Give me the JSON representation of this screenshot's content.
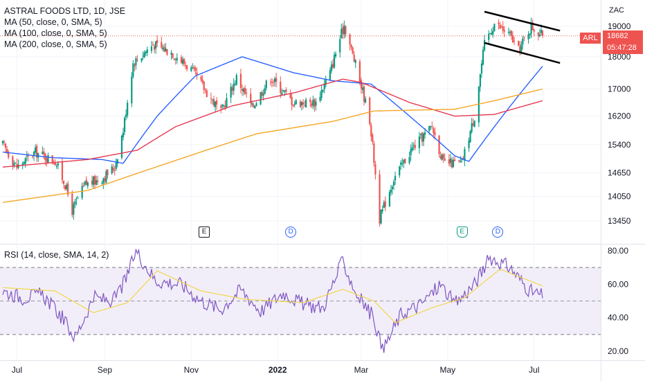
{
  "header": {
    "title": "ASTRAL FOODS LTD, 1D, JSE",
    "indicators": [
      "MA (50, close, 0, SMA, 5)",
      "MA (100, close, 0, SMA, 5)",
      "MA (200, close, 0, SMA, 5)"
    ],
    "rsi_label": "RSI (14, close, SMA, 14, 2)"
  },
  "currency": "ZAC",
  "price_tag": {
    "ticker": "ARL",
    "price": "18682",
    "countdown": "05:47:28"
  },
  "events": [
    {
      "kind": "E",
      "date_index": 107
    },
    {
      "kind": "D",
      "date_index": 153
    },
    {
      "kind": "E",
      "date_index": 244
    },
    {
      "kind": "D",
      "date_index": 263
    }
  ],
  "colors": {
    "up": "#089981",
    "down": "#ef5350",
    "ma50": "#2962ff",
    "ma100": "#e53950",
    "ma200": "#f5a623",
    "rsi": "#7e57c2",
    "rsi_ma": "#f2d64c",
    "rsi_band": "#ede7f6",
    "grid": "#f0f3fa",
    "text": "#131722"
  },
  "chart_data": [
    {
      "type": "candlestick",
      "title": "ASTRAL FOODS LTD, 1D, JSE",
      "period": "1D",
      "x_tick_labels": [
        "Jul",
        "Sep",
        "Nov",
        "2022",
        "Mar",
        "May",
        "Jul"
      ],
      "x_tick_dates": [
        "2021-07-01",
        "2021-09-01",
        "2021-11-01",
        "2022-01-01",
        "2022-03-01",
        "2022-05-01",
        "2022-07-01"
      ],
      "y_tick_labels": [
        13450,
        14050,
        14650,
        15400,
        16200,
        17000,
        18000,
        19000
      ],
      "ylim": [
        13000,
        19700
      ],
      "y_scale": "log",
      "last_price": 18682,
      "price_path": [
        {
          "date": "2021-06-21",
          "close": 15400
        },
        {
          "date": "2021-07-01",
          "close": 14800
        },
        {
          "date": "2021-07-14",
          "close": 15200
        },
        {
          "date": "2021-07-28",
          "close": 14950
        },
        {
          "date": "2021-08-04",
          "close": 14350
        },
        {
          "date": "2021-08-09",
          "close": 13700
        },
        {
          "date": "2021-08-18",
          "close": 14350
        },
        {
          "date": "2021-08-30",
          "close": 14500
        },
        {
          "date": "2021-09-08",
          "close": 14800
        },
        {
          "date": "2021-09-14",
          "close": 15800
        },
        {
          "date": "2021-09-21",
          "close": 17800
        },
        {
          "date": "2021-10-05",
          "close": 18400
        },
        {
          "date": "2021-10-18",
          "close": 18150
        },
        {
          "date": "2021-11-01",
          "close": 17600
        },
        {
          "date": "2021-11-12",
          "close": 16900
        },
        {
          "date": "2021-11-22",
          "close": 16300
        },
        {
          "date": "2021-12-03",
          "close": 17350
        },
        {
          "date": "2021-12-14",
          "close": 16450
        },
        {
          "date": "2021-12-27",
          "close": 17350
        },
        {
          "date": "2022-01-12",
          "close": 16600
        },
        {
          "date": "2022-01-28",
          "close": 16600
        },
        {
          "date": "2022-02-07",
          "close": 17500
        },
        {
          "date": "2022-02-14",
          "close": 18600
        },
        {
          "date": "2022-02-17",
          "close": 19050
        },
        {
          "date": "2022-02-24",
          "close": 17900
        },
        {
          "date": "2022-03-01",
          "close": 17100
        },
        {
          "date": "2022-03-07",
          "close": 16100
        },
        {
          "date": "2022-03-14",
          "close": 13500
        },
        {
          "date": "2022-03-24",
          "close": 14500
        },
        {
          "date": "2022-04-06",
          "close": 15300
        },
        {
          "date": "2022-04-20",
          "close": 15900
        },
        {
          "date": "2022-04-28",
          "close": 14900
        },
        {
          "date": "2022-05-11",
          "close": 14900
        },
        {
          "date": "2022-05-20",
          "close": 16200
        },
        {
          "date": "2022-05-27",
          "close": 18400
        },
        {
          "date": "2022-06-03",
          "close": 19100
        },
        {
          "date": "2022-06-14",
          "close": 18700
        },
        {
          "date": "2022-06-20",
          "close": 18200
        },
        {
          "date": "2022-06-29",
          "close": 19000
        },
        {
          "date": "2022-07-07",
          "close": 18682
        }
      ],
      "series": [
        {
          "name": "MA (50, close, 0, SMA, 5)",
          "points": [
            {
              "date": "2021-06-21",
              "value": 15200
            },
            {
              "date": "2021-07-26",
              "value": 15050
            },
            {
              "date": "2021-08-30",
              "value": 15000
            },
            {
              "date": "2021-09-14",
              "value": 14900
            },
            {
              "date": "2021-10-08",
              "value": 16200
            },
            {
              "date": "2021-11-04",
              "value": 17400
            },
            {
              "date": "2021-12-07",
              "value": 18000
            },
            {
              "date": "2022-01-12",
              "value": 17500
            },
            {
              "date": "2022-02-09",
              "value": 17250
            },
            {
              "date": "2022-03-08",
              "value": 17150
            },
            {
              "date": "2022-04-07",
              "value": 16100
            },
            {
              "date": "2022-05-06",
              "value": 15100
            },
            {
              "date": "2022-05-16",
              "value": 14950
            },
            {
              "date": "2022-06-03",
              "value": 15900
            },
            {
              "date": "2022-07-07",
              "value": 17700
            }
          ]
        },
        {
          "name": "MA (100, close, 0, SMA, 5)",
          "points": [
            {
              "date": "2021-06-21",
              "value": 14800
            },
            {
              "date": "2021-08-20",
              "value": 15000
            },
            {
              "date": "2021-09-24",
              "value": 15250
            },
            {
              "date": "2021-10-21",
              "value": 15900
            },
            {
              "date": "2021-11-30",
              "value": 16500
            },
            {
              "date": "2022-01-14",
              "value": 16900
            },
            {
              "date": "2022-02-16",
              "value": 17300
            },
            {
              "date": "2022-03-01",
              "value": 17200
            },
            {
              "date": "2022-04-04",
              "value": 16600
            },
            {
              "date": "2022-05-06",
              "value": 16200
            },
            {
              "date": "2022-06-03",
              "value": 16250
            },
            {
              "date": "2022-07-07",
              "value": 16650
            }
          ]
        },
        {
          "name": "MA (200, close, 0, SMA, 5)",
          "points": [
            {
              "date": "2021-06-21",
              "value": 13900
            },
            {
              "date": "2021-08-20",
              "value": 14200
            },
            {
              "date": "2021-10-19",
              "value": 14950
            },
            {
              "date": "2021-12-17",
              "value": 15700
            },
            {
              "date": "2022-02-09",
              "value": 16050
            },
            {
              "date": "2022-03-10",
              "value": 16350
            },
            {
              "date": "2022-05-06",
              "value": 16400
            },
            {
              "date": "2022-06-03",
              "value": 16650
            },
            {
              "date": "2022-07-07",
              "value": 17000
            }
          ]
        }
      ],
      "annotations": {
        "channel_upper": [
          {
            "date": "2022-05-27",
            "value": 19500
          },
          {
            "date": "2022-07-07",
            "value": 19000
          }
        ],
        "channel_lower": [
          {
            "date": "2022-05-27",
            "value": 18450
          },
          {
            "date": "2022-07-07",
            "value": 17950
          }
        ]
      }
    },
    {
      "type": "line",
      "title": "RSI (14, close, SMA, 14, 2)",
      "y_tick_labels": [
        "80.00",
        "60.00",
        "40.00",
        "20.00"
      ],
      "ylim": [
        18,
        82
      ],
      "band": [
        30,
        70
      ],
      "midline": 50,
      "series": [
        {
          "name": "RSI",
          "points": [
            {
              "date": "2021-06-21",
              "value": 56
            },
            {
              "date": "2021-07-05",
              "value": 52
            },
            {
              "date": "2021-07-19",
              "value": 54
            },
            {
              "date": "2021-08-02",
              "value": 40
            },
            {
              "date": "2021-08-11",
              "value": 28
            },
            {
              "date": "2021-08-24",
              "value": 52
            },
            {
              "date": "2021-09-07",
              "value": 50
            },
            {
              "date": "2021-09-16",
              "value": 63
            },
            {
              "date": "2021-09-23",
              "value": 80
            },
            {
              "date": "2021-10-07",
              "value": 62
            },
            {
              "date": "2021-10-25",
              "value": 60
            },
            {
              "date": "2021-11-08",
              "value": 50
            },
            {
              "date": "2021-11-22",
              "value": 45
            },
            {
              "date": "2021-12-06",
              "value": 57
            },
            {
              "date": "2021-12-20",
              "value": 44
            },
            {
              "date": "2022-01-05",
              "value": 55
            },
            {
              "date": "2022-01-19",
              "value": 48
            },
            {
              "date": "2022-02-02",
              "value": 46
            },
            {
              "date": "2022-02-16",
              "value": 74
            },
            {
              "date": "2022-02-25",
              "value": 55
            },
            {
              "date": "2022-03-10",
              "value": 40
            },
            {
              "date": "2022-03-16",
              "value": 20
            },
            {
              "date": "2022-03-29",
              "value": 42
            },
            {
              "date": "2022-04-12",
              "value": 48
            },
            {
              "date": "2022-04-26",
              "value": 60
            },
            {
              "date": "2022-05-06",
              "value": 48
            },
            {
              "date": "2022-05-20",
              "value": 60
            },
            {
              "date": "2022-05-31",
              "value": 76
            },
            {
              "date": "2022-06-14",
              "value": 70
            },
            {
              "date": "2022-06-28",
              "value": 56
            },
            {
              "date": "2022-07-07",
              "value": 53
            }
          ]
        },
        {
          "name": "RSI-based MA",
          "points": [
            {
              "date": "2021-06-21",
              "value": 58
            },
            {
              "date": "2021-07-28",
              "value": 56
            },
            {
              "date": "2021-08-24",
              "value": 43
            },
            {
              "date": "2021-09-17",
              "value": 49
            },
            {
              "date": "2021-10-08",
              "value": 68
            },
            {
              "date": "2021-11-08",
              "value": 56
            },
            {
              "date": "2021-12-09",
              "value": 51
            },
            {
              "date": "2022-01-19",
              "value": 49
            },
            {
              "date": "2022-02-16",
              "value": 57
            },
            {
              "date": "2022-03-10",
              "value": 50
            },
            {
              "date": "2022-03-25",
              "value": 37
            },
            {
              "date": "2022-04-20",
              "value": 46
            },
            {
              "date": "2022-05-13",
              "value": 52
            },
            {
              "date": "2022-06-07",
              "value": 69
            },
            {
              "date": "2022-07-07",
              "value": 59
            }
          ]
        }
      ]
    }
  ]
}
